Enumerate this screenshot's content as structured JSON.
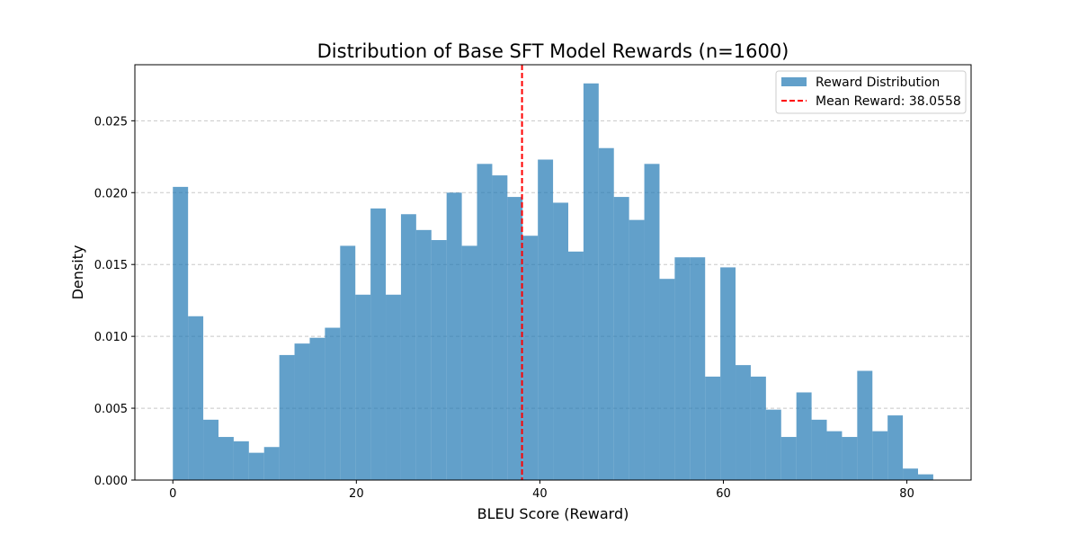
{
  "chart_data": {
    "type": "bar",
    "title": "Distribution of Base SFT Model Rewards (n=1600)",
    "xlabel": "BLEU Score (Reward)",
    "ylabel": "Density",
    "xlim": [
      -4.14,
      87.0
    ],
    "ylim": [
      0,
      0.0289
    ],
    "xticks": [
      0,
      20,
      40,
      60,
      80
    ],
    "xtick_labels": [
      "0",
      "20",
      "40",
      "60",
      "80"
    ],
    "yticks": [
      0.0,
      0.005,
      0.01,
      0.015,
      0.02,
      0.025
    ],
    "ytick_labels": [
      "0.000",
      "0.005",
      "0.010",
      "0.015",
      "0.020",
      "0.025"
    ],
    "grid": "y-dashed",
    "legend_position": "top-right",
    "bin_edges": [
      0,
      1.6575,
      3.315,
      4.9725,
      6.63,
      8.2875,
      9.945,
      11.6025,
      13.26,
      14.9175,
      16.575,
      18.2325,
      19.89,
      21.5475,
      23.205,
      24.8625,
      26.52,
      28.1775,
      29.835,
      31.4925,
      33.15,
      34.8075,
      36.465,
      38.1225,
      39.78,
      41.4375,
      43.095,
      44.7525,
      46.41,
      48.0675,
      49.725,
      51.3825,
      53.04,
      54.6975,
      56.355,
      58.0125,
      59.67,
      61.3275,
      62.985,
      64.6425,
      66.3,
      67.9575,
      69.615,
      71.2725,
      72.93,
      74.5875,
      76.245,
      77.9025,
      79.56,
      81.2175,
      82.875
    ],
    "series": [
      {
        "name": "Reward Distribution",
        "kind": "histogram",
        "color": "#1f77b4",
        "alpha": 0.7,
        "values": [
          0.0204,
          0.0114,
          0.0042,
          0.003,
          0.0027,
          0.0019,
          0.0023,
          0.0087,
          0.0095,
          0.0099,
          0.0106,
          0.0163,
          0.0129,
          0.0189,
          0.0129,
          0.0185,
          0.0174,
          0.0167,
          0.02,
          0.0163,
          0.022,
          0.0212,
          0.0197,
          0.017,
          0.0223,
          0.0193,
          0.0159,
          0.0276,
          0.0231,
          0.0197,
          0.0181,
          0.022,
          0.014,
          0.0155,
          0.0155,
          0.0072,
          0.0148,
          0.008,
          0.0072,
          0.0049,
          0.003,
          0.0061,
          0.0042,
          0.0034,
          0.003,
          0.0076,
          0.0034,
          0.0045,
          0.0008,
          0.0004
        ]
      },
      {
        "name": "Mean Reward: 38.0558",
        "kind": "vline",
        "x": 38.0558,
        "color": "#ff0000",
        "style": "dashed"
      }
    ]
  }
}
